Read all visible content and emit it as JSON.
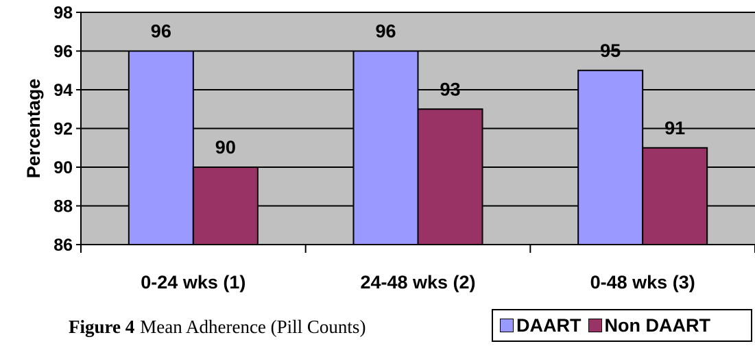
{
  "chart_data": {
    "type": "bar",
    "categories": [
      "0-24 wks (1)",
      "24-48 wks (2)",
      "0-48 wks (3)"
    ],
    "series": [
      {
        "name": "DAART",
        "values": [
          96,
          96,
          95
        ],
        "color": "#9999ff"
      },
      {
        "name": "Non DAART",
        "values": [
          90,
          93,
          91
        ],
        "color": "#993366"
      }
    ],
    "title": "",
    "xlabel": "",
    "ylabel": "Percentage",
    "ylim": [
      86,
      98
    ],
    "yticks": [
      86,
      88,
      90,
      92,
      94,
      96,
      98
    ],
    "grid": true,
    "plot_background": "#c0c0c0",
    "legend_position": "bottom-right"
  },
  "caption": {
    "number": "Figure 4",
    "text": "Mean Adherence (Pill Counts)"
  }
}
